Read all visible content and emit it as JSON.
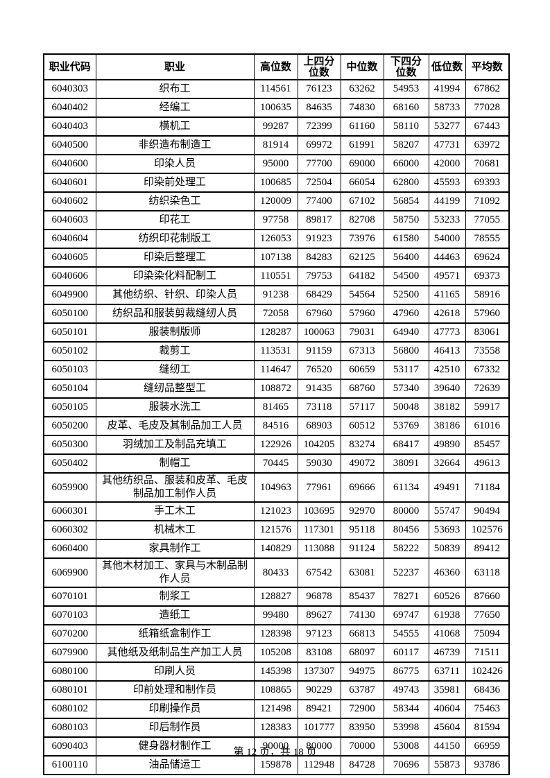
{
  "table": {
    "columns": [
      "职业代码",
      "职业",
      "高位数",
      "上四分\n位数",
      "中位数",
      "下四分\n位数",
      "低位数",
      "平均数"
    ],
    "rows": [
      [
        "6040303",
        "织布工",
        "114561",
        "76123",
        "63262",
        "54953",
        "41994",
        "67862"
      ],
      [
        "6040402",
        "经编工",
        "100635",
        "84635",
        "74830",
        "68160",
        "58733",
        "77028"
      ],
      [
        "6040403",
        "横机工",
        "99287",
        "72399",
        "61160",
        "58110",
        "53277",
        "67443"
      ],
      [
        "6040500",
        "非织造布制造工",
        "81914",
        "69972",
        "61991",
        "58207",
        "47731",
        "63972"
      ],
      [
        "6040600",
        "印染人员",
        "95000",
        "77700",
        "69000",
        "66000",
        "42000",
        "70681"
      ],
      [
        "6040601",
        "印染前处理工",
        "100685",
        "72504",
        "66054",
        "62800",
        "45593",
        "69393"
      ],
      [
        "6040602",
        "纺织染色工",
        "120009",
        "77400",
        "67102",
        "56854",
        "44199",
        "71092"
      ],
      [
        "6040603",
        "印花工",
        "97758",
        "89817",
        "82708",
        "58750",
        "53233",
        "77055"
      ],
      [
        "6040604",
        "纺织印花制版工",
        "126053",
        "91923",
        "73976",
        "61580",
        "54000",
        "78555"
      ],
      [
        "6040605",
        "印染后整理工",
        "107138",
        "84283",
        "62125",
        "56400",
        "44463",
        "69624"
      ],
      [
        "6040606",
        "印染染化料配制工",
        "110551",
        "79753",
        "64182",
        "54500",
        "49571",
        "69373"
      ],
      [
        "6049900",
        "其他纺织、针织、印染人员",
        "91238",
        "68429",
        "54564",
        "52500",
        "41165",
        "58916"
      ],
      [
        "6050100",
        "纺织品和服装剪裁缝纫人员",
        "72058",
        "67960",
        "57960",
        "47960",
        "42618",
        "57960"
      ],
      [
        "6050101",
        "服装制版师",
        "128287",
        "100063",
        "79031",
        "64940",
        "47773",
        "83061"
      ],
      [
        "6050102",
        "裁剪工",
        "113531",
        "91159",
        "67313",
        "56800",
        "46413",
        "73558"
      ],
      [
        "6050103",
        "缝纫工",
        "114647",
        "76520",
        "60659",
        "53117",
        "42510",
        "67332"
      ],
      [
        "6050104",
        "缝纫品整型工",
        "108872",
        "91435",
        "68760",
        "57340",
        "39640",
        "72639"
      ],
      [
        "6050105",
        "服装水洗工",
        "81465",
        "73118",
        "57117",
        "50048",
        "38182",
        "59917"
      ],
      [
        "6050200",
        "皮革、毛皮及其制品加工人员",
        "84516",
        "68903",
        "60512",
        "53769",
        "38186",
        "61016"
      ],
      [
        "6050300",
        "羽绒加工及制品充填工",
        "122926",
        "104205",
        "83274",
        "68417",
        "49890",
        "85457"
      ],
      [
        "6050402",
        "制帽工",
        "70445",
        "59030",
        "49072",
        "38091",
        "32664",
        "49613"
      ],
      [
        "6059900",
        "其他纺织品、服装和皮革、毛皮制品加工制作人员",
        "104963",
        "77961",
        "69666",
        "61134",
        "49491",
        "71184"
      ],
      [
        "6060301",
        "手工木工",
        "121023",
        "103695",
        "92970",
        "80000",
        "55747",
        "90494"
      ],
      [
        "6060302",
        "机械木工",
        "121576",
        "117301",
        "95118",
        "80456",
        "53693",
        "102576"
      ],
      [
        "6060400",
        "家具制作工",
        "140829",
        "113088",
        "91124",
        "58222",
        "50839",
        "89412"
      ],
      [
        "6069900",
        "其他木材加工、家具与木制品制作人员",
        "80433",
        "67542",
        "63081",
        "52237",
        "46360",
        "63118"
      ],
      [
        "6070101",
        "制浆工",
        "128827",
        "96878",
        "85437",
        "78271",
        "60526",
        "87660"
      ],
      [
        "6070103",
        "造纸工",
        "99480",
        "89627",
        "74130",
        "69747",
        "61938",
        "77650"
      ],
      [
        "6070200",
        "纸箱纸盒制作工",
        "128398",
        "97123",
        "66813",
        "54555",
        "41068",
        "75094"
      ],
      [
        "6079900",
        "其他纸及纸制品生产加工人员",
        "105208",
        "83108",
        "68097",
        "60117",
        "46739",
        "71511"
      ],
      [
        "6080100",
        "印刷人员",
        "145398",
        "137307",
        "94975",
        "86775",
        "63711",
        "102426"
      ],
      [
        "6080101",
        "印前处理和制作员",
        "108865",
        "90229",
        "63787",
        "49743",
        "35981",
        "68436"
      ],
      [
        "6080102",
        "印刷操作员",
        "121498",
        "89421",
        "72900",
        "58344",
        "40604",
        "75463"
      ],
      [
        "6080103",
        "印后制作员",
        "128383",
        "101777",
        "83950",
        "53998",
        "45604",
        "81594"
      ],
      [
        "6090403",
        "健身器材制作工",
        "90000",
        "80000",
        "70000",
        "53008",
        "44150",
        "66959"
      ],
      [
        "6100110",
        "油品储运工",
        "159878",
        "112948",
        "84728",
        "70696",
        "55873",
        "93786"
      ]
    ]
  },
  "footer": {
    "text": "第 12 页，共 18 页"
  }
}
